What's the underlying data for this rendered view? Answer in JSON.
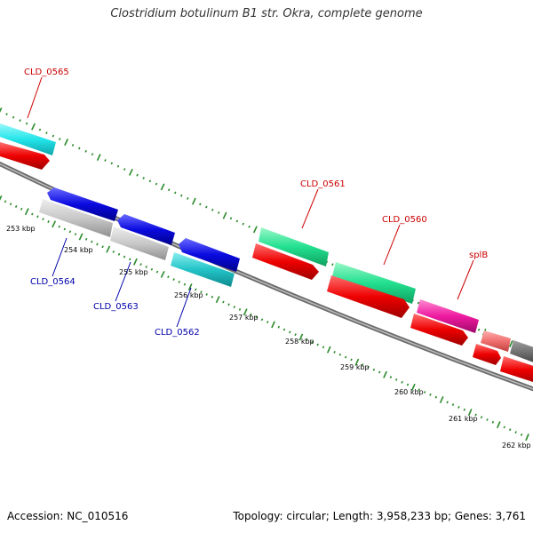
{
  "title": "Clostridium botulinum B1 str. Okra, complete genome",
  "footer": {
    "accession": "Accession: NC_010516",
    "summary": "Topology: circular; Length: 3,958,233 bp; Genes: 3,761"
  },
  "ticks": [
    "253 kbp",
    "254 kbp",
    "255 kbp",
    "256 kbp",
    "257 kbp",
    "258 kbp",
    "259 kbp",
    "260 kbp",
    "261 kbp",
    "262 kbp"
  ],
  "gene_labels": [
    {
      "name": "CLD_0565",
      "color": "#cc0000"
    },
    {
      "name": "CLD_0561",
      "color": "#cc0000"
    },
    {
      "name": "CLD_0560",
      "color": "#cc0000"
    },
    {
      "name": "splB",
      "color": "#cc0000"
    },
    {
      "name": "CLD_0564",
      "color": "#0000aa"
    },
    {
      "name": "CLD_0563",
      "color": "#0000aa"
    },
    {
      "name": "CLD_0562",
      "color": "#0000aa"
    }
  ],
  "colors": {
    "cyan": "#22e5ea",
    "red": "#ee0000",
    "blue": "#0a0ae0",
    "gray": "#c8c8c8",
    "teal": "#22c4c8",
    "mint": "#22e090",
    "magenta": "#ee1aa0",
    "pink": "#f07070",
    "dark_gray": "#707070",
    "tick_green": "#2a8a2a",
    "backbone": "#7a7a7a"
  }
}
